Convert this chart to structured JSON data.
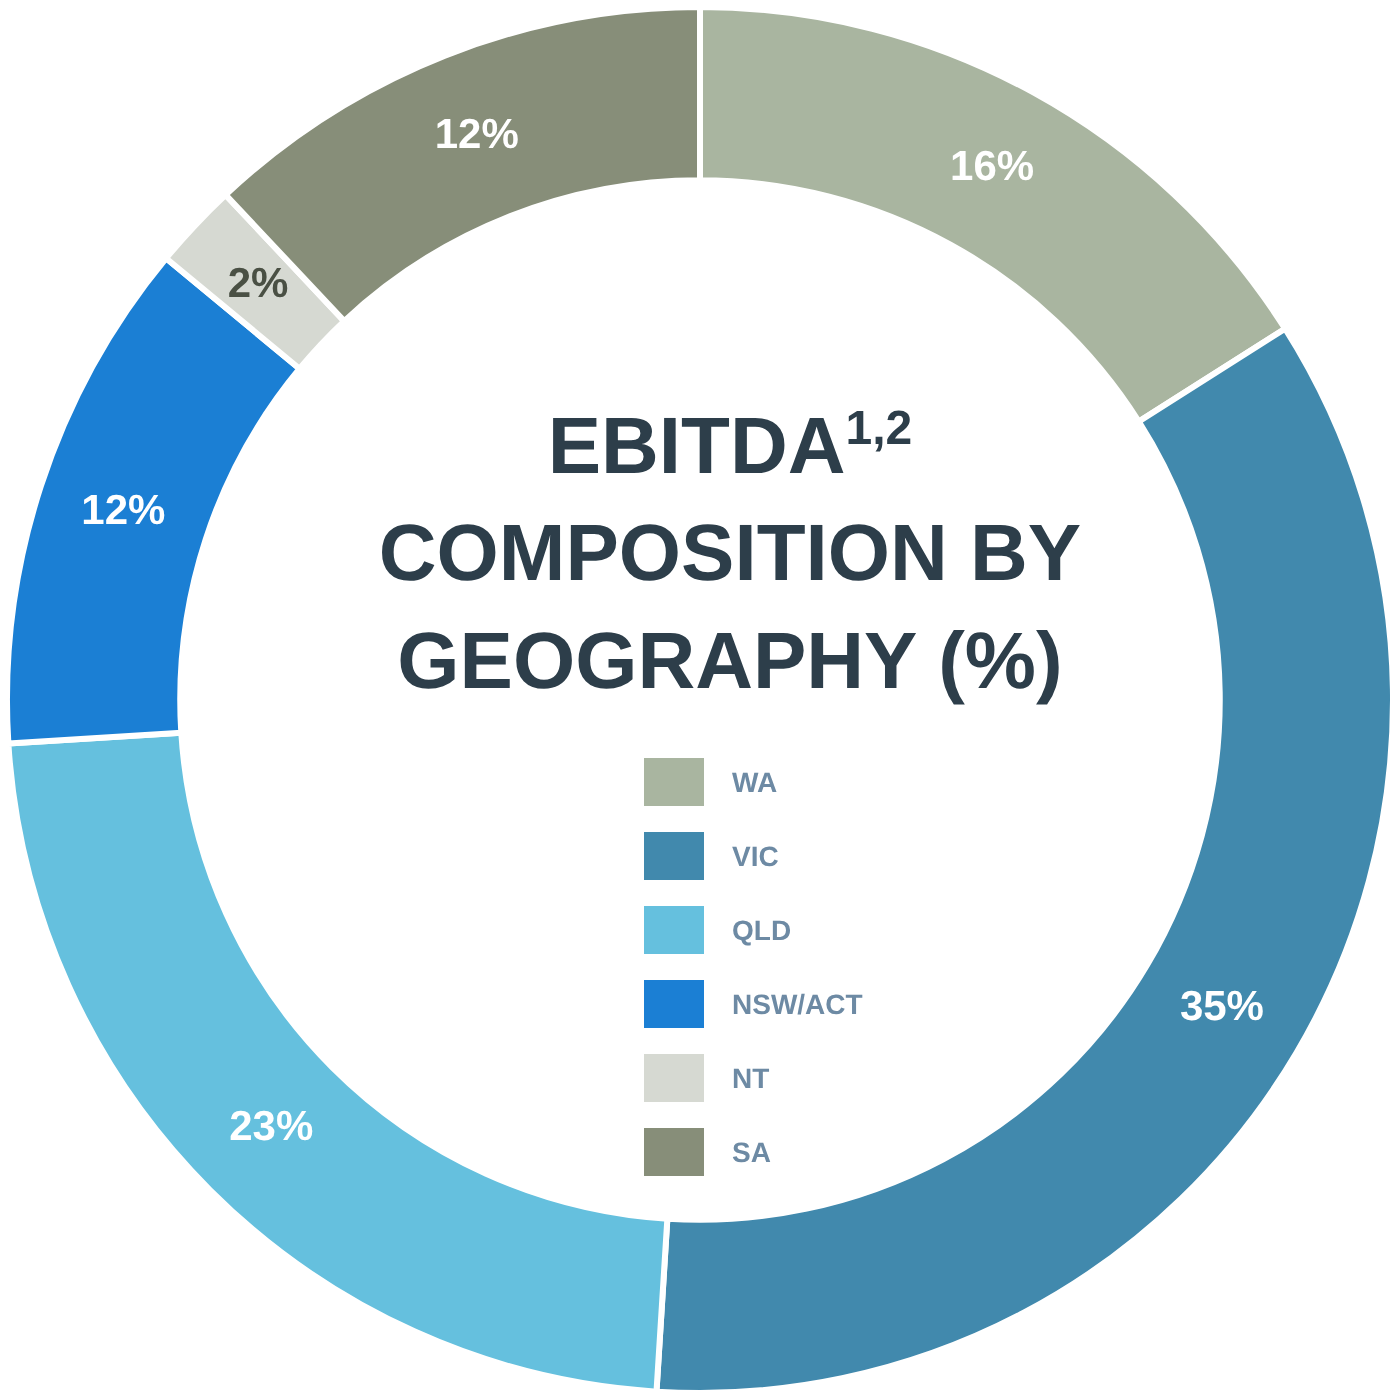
{
  "chart_data": {
    "type": "donut",
    "title": "EBITDA$^{1,2}$ COMPOSITION BY GEOGRAPHY (%)",
    "categories": [
      "WA",
      "VIC",
      "QLD",
      "NSW/ACT",
      "NT",
      "SA"
    ],
    "values": [
      16,
      35,
      23,
      12,
      2,
      12
    ],
    "colors": [
      "#a9b5a0",
      "#4189ad",
      "#65c0de",
      "#1b7fd4",
      "#d6d9d2",
      "#878e79"
    ],
    "value_labels": [
      "16%",
      "35%",
      "23%",
      "12%",
      "2%",
      "12%"
    ],
    "legend": "center"
  }
}
